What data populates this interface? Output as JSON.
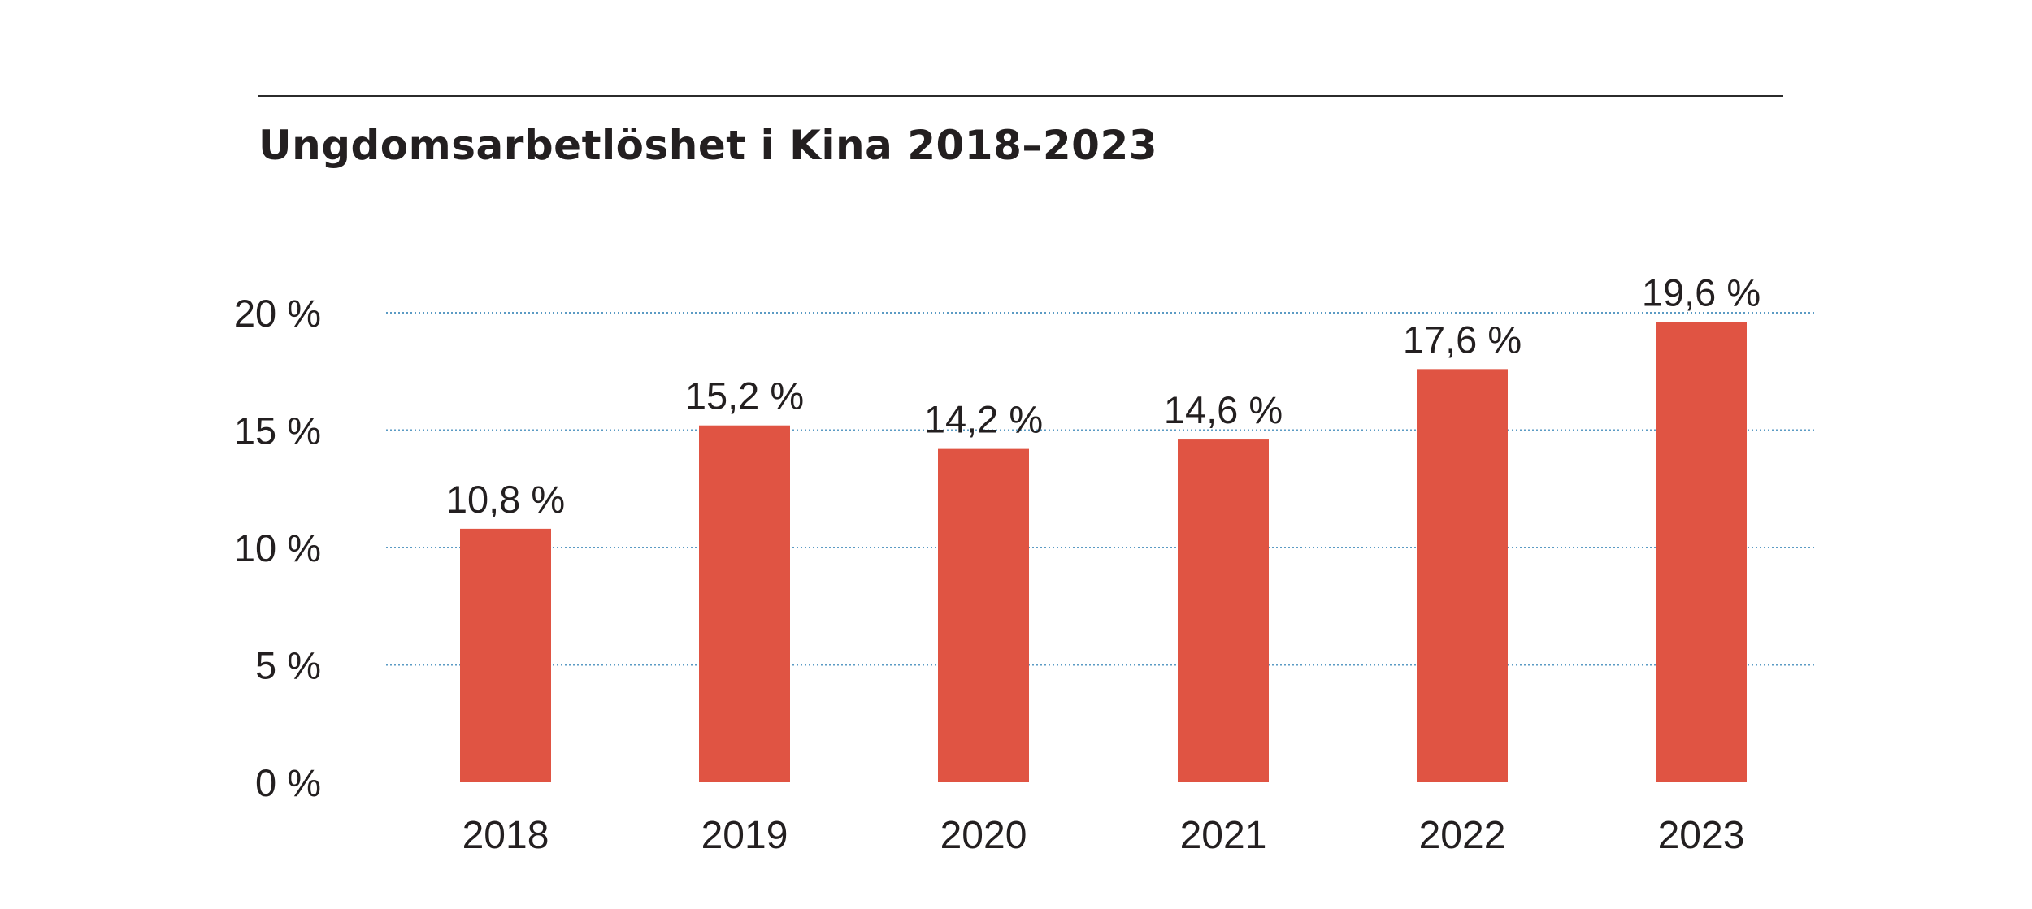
{
  "chart_data": {
    "type": "bar",
    "title": "Ungdomsarbetlöshet i Kina 2018–2023",
    "categories": [
      "2018",
      "2019",
      "2020",
      "2021",
      "2022",
      "2023"
    ],
    "values": [
      10.8,
      15.2,
      14.2,
      14.6,
      17.6,
      19.6
    ],
    "data_labels": [
      "10,8 %",
      "15,2 %",
      "14,2 %",
      "14,6 %",
      "17,6 %",
      "19,6 %"
    ],
    "y_ticks": [
      0,
      5,
      10,
      15,
      20
    ],
    "y_tick_labels": [
      "0 %",
      "5 %",
      "10 %",
      "15 %",
      "20 %"
    ],
    "ylim": [
      0,
      20
    ],
    "xlabel": "",
    "ylabel": "",
    "grid": "horizontal dotted",
    "legend": "none",
    "colors": {
      "bar": "#e05443",
      "grid": "#5b9bc4",
      "text": "#231f20",
      "rule": "#2b2b2b"
    }
  }
}
